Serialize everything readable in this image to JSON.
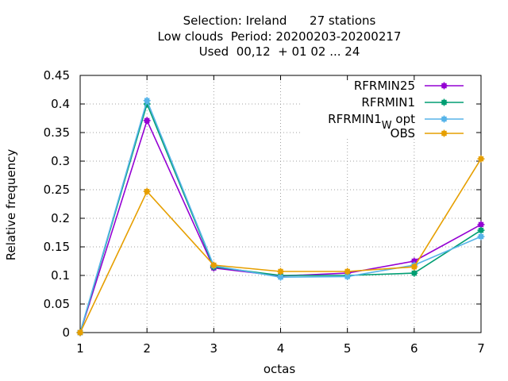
{
  "chart_data": {
    "type": "line",
    "title_lines": [
      "Selection: Ireland      27 stations",
      "Low clouds  Period: 20200203-20200217",
      "Used  00,12  + 01 02 ... 24"
    ],
    "xlabel": "octas",
    "ylabel": "Relative frequency",
    "x": [
      1,
      2,
      3,
      4,
      5,
      6,
      7
    ],
    "xlim": [
      1,
      7
    ],
    "ylim": [
      0,
      0.45
    ],
    "x_ticks": [
      "1",
      "2",
      "3",
      "4",
      "5",
      "6",
      "7"
    ],
    "y_ticks": [
      "0",
      "0.05",
      "0.1",
      "0.15",
      "0.2",
      "0.25",
      "0.3",
      "0.35",
      "0.4",
      "0.45"
    ],
    "grid": true,
    "legend_position": "top-right",
    "series": [
      {
        "name": "RFRMIN25",
        "color": "#9400d3",
        "values": [
          0.0,
          0.371,
          0.113,
          0.099,
          0.104,
          0.125,
          0.189
        ]
      },
      {
        "name": "RFRMIN1",
        "color": "#009e73",
        "values": [
          0.0,
          0.4,
          0.115,
          0.1,
          0.1,
          0.104,
          0.179
        ]
      },
      {
        "name": "RFRMIN1_W opt",
        "color": "#56b4e9",
        "values": [
          0.0,
          0.406,
          0.117,
          0.097,
          0.098,
          0.118,
          0.168
        ]
      },
      {
        "name": "OBS",
        "color": "#e69f00",
        "values": [
          0.0,
          0.247,
          0.118,
          0.107,
          0.107,
          0.115,
          0.304
        ]
      }
    ]
  }
}
